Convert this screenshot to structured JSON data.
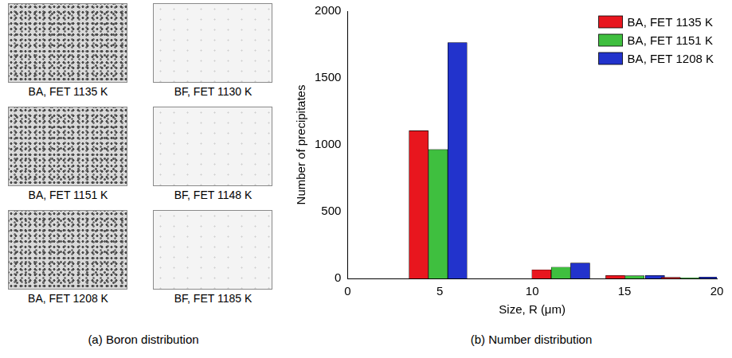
{
  "panel_a": {
    "caption": "(a) Boron distribution",
    "images": [
      {
        "label": "BA, FET 1135 K"
      },
      {
        "label": "BF, FET 1130 K"
      },
      {
        "label": "BA, FET 1151 K"
      },
      {
        "label": "BF, FET 1148 K"
      },
      {
        "label": "BA, FET 1208 K"
      },
      {
        "label": "BF, FET 1185 K"
      }
    ]
  },
  "chart_data": {
    "type": "bar",
    "caption": "(b) Number distribution",
    "x_label": "Size, R (μm)",
    "y_label": "Number of precipitates",
    "xlim": [
      0,
      20
    ],
    "xticks": [
      0,
      5,
      10,
      15,
      20
    ],
    "ylim": [
      0,
      2000
    ],
    "yticks": [
      0,
      500,
      1000,
      1500,
      2000
    ],
    "grid": false,
    "legend": "top right",
    "series": [
      {
        "name": "BA, FET 1135 K",
        "color": "#e8161e",
        "x": [
          3.85,
          10.5,
          14.5,
          17.5
        ],
        "values": [
          1105,
          65,
          22,
          8
        ]
      },
      {
        "name": "BA, FET 1151 K",
        "color": "#3fbf3f",
        "x": [
          4.9,
          11.55,
          15.55,
          18.55
        ],
        "values": [
          965,
          85,
          20,
          6
        ]
      },
      {
        "name": "BA, FET 1208 K",
        "color": "#2233cc",
        "x": [
          5.95,
          12.6,
          16.65,
          19.55
        ],
        "values": [
          1765,
          115,
          22,
          10
        ]
      }
    ]
  }
}
